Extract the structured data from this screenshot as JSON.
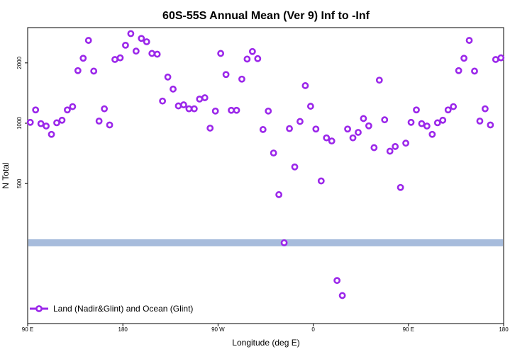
{
  "chart_data": {
    "type": "scatter",
    "title": "60S-55S Annual Mean (Ver 9)   Inf to -Inf",
    "xlabel": "Longitude (deg E)",
    "ylabel": "N Total",
    "x_ticks": [
      {
        "value": 90,
        "label": "90 E"
      },
      {
        "value": 180,
        "label": "180"
      },
      {
        "value": 270,
        "label": "90 W"
      },
      {
        "value": 360,
        "label": "0"
      },
      {
        "value": 450,
        "label": "90 E"
      },
      {
        "value": 540,
        "label": "180"
      }
    ],
    "y_ticks": [
      {
        "value": 500,
        "label": "500"
      },
      {
        "value": 1000,
        "label": "1000"
      },
      {
        "value": 2000,
        "label": "2000"
      }
    ],
    "xlim": [
      90,
      540
    ],
    "ylim": [
      1,
      3.0
    ],
    "y_scale": "log",
    "grid": false,
    "legend": {
      "position": "bottom-left",
      "label": "Land (Nadir&Glint) and Ocean (Glint)"
    },
    "band": {
      "y_value": 253,
      "color": "#a7bcdc"
    },
    "series": [
      {
        "name": "Land (Nadir&Glint) and Ocean (Glint)",
        "color": "#9b27ea",
        "x": [
          92.5,
          97.5,
          102.5,
          107.5,
          112.5,
          117.5,
          122.5,
          127.5,
          132.5,
          137.5,
          142.5,
          147.5,
          152.5,
          157.5,
          162.5,
          167.5,
          172.5,
          177.5,
          182.5,
          187.5,
          192.5,
          197.5,
          202.5,
          207.5,
          212.5,
          217.5,
          222.5,
          227.5,
          232.5,
          237.5,
          242.5,
          247.5,
          252.5,
          257.5,
          262.5,
          267.5,
          272.5,
          277.5,
          282.5,
          287.5,
          292.5,
          297.5,
          302.5,
          307.5,
          312.5,
          317.5,
          322.5,
          327.5,
          332.5,
          337.5,
          342.5,
          347.5,
          352.5,
          357.5,
          362.5,
          367.5,
          372.5,
          377.5,
          382.5,
          387.5,
          392.5,
          397.5,
          402.5,
          407.5,
          412.5,
          417.5,
          422.5,
          427.5,
          432.5,
          437.5,
          442.5,
          447.5,
          452.5,
          457.5,
          462.5,
          467.5,
          472.5,
          477.5,
          482.5,
          487.5,
          492.5,
          497.5,
          502.5,
          507.5,
          512.5,
          517.5,
          522.5,
          527.5,
          532.5,
          537.5
        ],
        "y": [
          1010,
          1165,
          995,
          968,
          880,
          1005,
          1035,
          1165,
          1210,
          1830,
          2110,
          2590,
          1820,
          1025,
          1180,
          980,
          2080,
          2120,
          2450,
          2800,
          2290,
          2650,
          2550,
          2230,
          2210,
          1290,
          1700,
          1480,
          1220,
          1235,
          1180,
          1180,
          1320,
          1340,
          945,
          1150,
          2230,
          1750,
          1160,
          1160,
          1660,
          2090,
          2280,
          2100,
          930,
          1150,
          710,
          440,
          253,
          940,
          605,
          1020,
          1540,
          1215,
          935,
          515,
          845,
          815,
          164,
          138,
          935,
          845,
          900,
          1055,
          970,
          755,
          1640,
          1040,
          725,
          765,
          478,
          795,
          1010,
          1165,
          995,
          968,
          880,
          1005,
          1035,
          1165,
          1210,
          1830,
          2110,
          2590,
          1820,
          1025,
          1180,
          980,
          2080,
          2120
        ]
      }
    ]
  }
}
